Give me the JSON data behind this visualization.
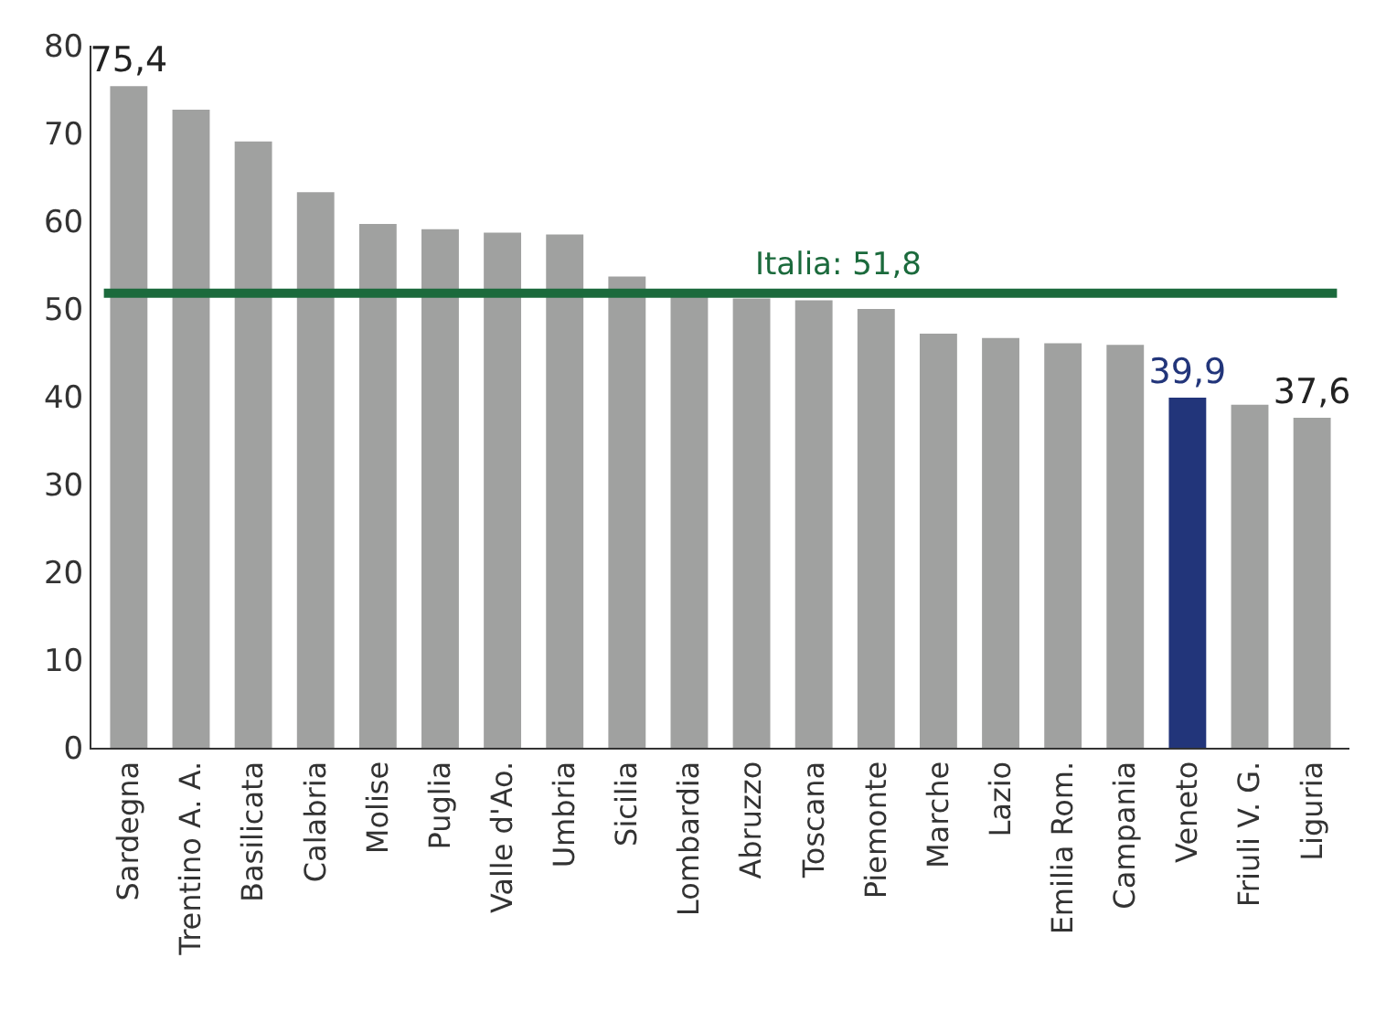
{
  "chart_data": {
    "type": "bar",
    "categories": [
      "Sardegna",
      "Trentino A. A.",
      "Basilicata",
      "Calabria",
      "Molise",
      "Puglia",
      "Valle d'Ao.",
      "Umbria",
      "Sicilia",
      "Lombardia",
      "Abruzzo",
      "Toscana",
      "Piemonte",
      "Marche",
      "Lazio",
      "Emilia Rom.",
      "Campania",
      "Veneto",
      "Friuli V. G.",
      "Liguria"
    ],
    "values": [
      75.4,
      72.7,
      69.1,
      63.3,
      59.7,
      59.1,
      58.7,
      58.5,
      53.7,
      51.6,
      51.2,
      51.0,
      50.0,
      47.2,
      46.7,
      46.1,
      45.9,
      39.9,
      39.1,
      37.6
    ],
    "colors": [
      "#a0a1a0",
      "#a0a1a0",
      "#a0a1a0",
      "#a0a1a0",
      "#a0a1a0",
      "#a0a1a0",
      "#a0a1a0",
      "#a0a1a0",
      "#a0a1a0",
      "#a0a1a0",
      "#a0a1a0",
      "#a0a1a0",
      "#a0a1a0",
      "#a0a1a0",
      "#a0a1a0",
      "#a0a1a0",
      "#a0a1a0",
      "#22357a",
      "#a0a1a0",
      "#a0a1a0"
    ],
    "value_labels": [
      "75,4",
      null,
      null,
      null,
      null,
      null,
      null,
      null,
      null,
      null,
      null,
      null,
      null,
      null,
      null,
      null,
      null,
      "39,9",
      null,
      "37,6"
    ],
    "ref_lines": [
      {
        "axis": "y",
        "value": 51.8,
        "label": "Italia: 51,8",
        "color": "#1b6a3c"
      }
    ],
    "ylim": [
      0,
      80
    ],
    "yticks": [
      0,
      10,
      20,
      30,
      40,
      50,
      60,
      70,
      80
    ],
    "legend": false
  }
}
